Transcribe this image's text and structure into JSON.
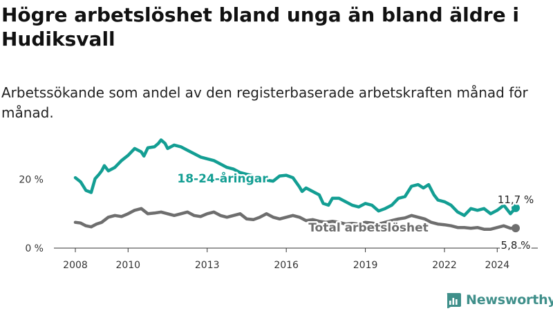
{
  "title": "Högre arbetslöshet bland unga än bland äldre i Hudiksvall",
  "subtitle": "Arbetssökande som andel av den registerbaserade arbetskraften månad för månad.",
  "brand": {
    "name": "Newsworthy",
    "icon": "newsworthy-logo-icon"
  },
  "colors": {
    "youth": "#139e93",
    "total": "#6e6e6e",
    "axis": "#333333",
    "grid": "#dddddd",
    "brand": "#3f8f8a"
  },
  "chart_data": {
    "type": "line",
    "title": "Högre arbetslöshet bland unga än bland äldre i Hudiksvall",
    "subtitle": "Arbetssökande som andel av den registerbaserade arbetskraften månad för månad.",
    "xlabel": "",
    "ylabel": "",
    "x_ticks": [
      "2008",
      "2010",
      "2013",
      "2016",
      "2019",
      "2022",
      "2024"
    ],
    "x_tick_values": [
      2008,
      2010,
      2013,
      2016,
      2019,
      2022,
      2024
    ],
    "y_ticks": [
      "0 %",
      "20 %"
    ],
    "y_tick_values": [
      0,
      20
    ],
    "ylim": [
      0,
      33
    ],
    "xlim": [
      2007.5,
      2025.3
    ],
    "grid": false,
    "legend": "inline labels",
    "series": [
      {
        "name": "18-24-åringar",
        "end_label": "11,7 %",
        "points": [
          [
            2008.0,
            20.5
          ],
          [
            2008.2,
            19.3
          ],
          [
            2008.4,
            16.8
          ],
          [
            2008.6,
            16.2
          ],
          [
            2008.75,
            20.2
          ],
          [
            2008.9,
            21.5
          ],
          [
            2009.0,
            22.5
          ],
          [
            2009.1,
            24.0
          ],
          [
            2009.25,
            22.5
          ],
          [
            2009.5,
            23.5
          ],
          [
            2009.75,
            25.5
          ],
          [
            2010.0,
            27.0
          ],
          [
            2010.25,
            29.0
          ],
          [
            2010.5,
            28.0
          ],
          [
            2010.6,
            26.8
          ],
          [
            2010.75,
            29.2
          ],
          [
            2011.0,
            29.5
          ],
          [
            2011.15,
            30.5
          ],
          [
            2011.25,
            31.5
          ],
          [
            2011.4,
            30.5
          ],
          [
            2011.5,
            29.0
          ],
          [
            2011.75,
            30.0
          ],
          [
            2012.0,
            29.5
          ],
          [
            2012.25,
            28.5
          ],
          [
            2012.5,
            27.5
          ],
          [
            2012.75,
            26.5
          ],
          [
            2013.0,
            26.0
          ],
          [
            2013.25,
            25.5
          ],
          [
            2013.5,
            24.5
          ],
          [
            2013.75,
            23.5
          ],
          [
            2014.0,
            23.0
          ],
          [
            2014.25,
            22.0
          ],
          [
            2014.5,
            21.5
          ],
          [
            2014.75,
            21.0
          ],
          [
            2015.0,
            20.5
          ],
          [
            2015.25,
            19.8
          ],
          [
            2015.5,
            19.5
          ],
          [
            2015.75,
            21.0
          ],
          [
            2016.0,
            21.2
          ],
          [
            2016.25,
            20.5
          ],
          [
            2016.5,
            17.8
          ],
          [
            2016.6,
            16.5
          ],
          [
            2016.75,
            17.5
          ],
          [
            2017.0,
            16.5
          ],
          [
            2017.25,
            15.5
          ],
          [
            2017.4,
            13.0
          ],
          [
            2017.6,
            12.5
          ],
          [
            2017.75,
            14.5
          ],
          [
            2018.0,
            14.5
          ],
          [
            2018.25,
            13.5
          ],
          [
            2018.5,
            12.5
          ],
          [
            2018.75,
            12.0
          ],
          [
            2019.0,
            13.0
          ],
          [
            2019.25,
            12.5
          ],
          [
            2019.5,
            10.8
          ],
          [
            2019.75,
            11.5
          ],
          [
            2020.0,
            12.5
          ],
          [
            2020.25,
            14.5
          ],
          [
            2020.5,
            15.0
          ],
          [
            2020.75,
            18.0
          ],
          [
            2021.0,
            18.5
          ],
          [
            2021.2,
            17.5
          ],
          [
            2021.4,
            18.5
          ],
          [
            2021.6,
            15.5
          ],
          [
            2021.75,
            14.0
          ],
          [
            2022.0,
            13.5
          ],
          [
            2022.25,
            12.5
          ],
          [
            2022.5,
            10.5
          ],
          [
            2022.75,
            9.5
          ],
          [
            2023.0,
            11.5
          ],
          [
            2023.25,
            11.0
          ],
          [
            2023.5,
            11.5
          ],
          [
            2023.75,
            10.0
          ],
          [
            2024.0,
            11.0
          ],
          [
            2024.25,
            12.5
          ],
          [
            2024.5,
            10.0
          ],
          [
            2024.7,
            11.7
          ]
        ]
      },
      {
        "name": "Total arbetslöshet",
        "end_label": "5,8 %",
        "points": [
          [
            2008.0,
            7.5
          ],
          [
            2008.2,
            7.3
          ],
          [
            2008.4,
            6.5
          ],
          [
            2008.6,
            6.2
          ],
          [
            2008.8,
            7.0
          ],
          [
            2009.0,
            7.5
          ],
          [
            2009.25,
            9.0
          ],
          [
            2009.5,
            9.5
          ],
          [
            2009.75,
            9.2
          ],
          [
            2010.0,
            10.0
          ],
          [
            2010.25,
            11.0
          ],
          [
            2010.5,
            11.5
          ],
          [
            2010.75,
            10.0
          ],
          [
            2011.0,
            10.2
          ],
          [
            2011.25,
            10.5
          ],
          [
            2011.5,
            10.0
          ],
          [
            2011.75,
            9.5
          ],
          [
            2012.0,
            10.0
          ],
          [
            2012.25,
            10.5
          ],
          [
            2012.5,
            9.5
          ],
          [
            2012.75,
            9.2
          ],
          [
            2013.0,
            10.0
          ],
          [
            2013.25,
            10.5
          ],
          [
            2013.5,
            9.5
          ],
          [
            2013.75,
            9.0
          ],
          [
            2014.0,
            9.5
          ],
          [
            2014.25,
            10.0
          ],
          [
            2014.5,
            8.5
          ],
          [
            2014.75,
            8.3
          ],
          [
            2015.0,
            9.0
          ],
          [
            2015.25,
            10.0
          ],
          [
            2015.5,
            9.0
          ],
          [
            2015.75,
            8.5
          ],
          [
            2016.0,
            9.0
          ],
          [
            2016.25,
            9.5
          ],
          [
            2016.5,
            9.0
          ],
          [
            2016.75,
            8.0
          ],
          [
            2017.0,
            8.3
          ],
          [
            2017.25,
            7.8
          ],
          [
            2017.5,
            7.5
          ],
          [
            2017.75,
            7.8
          ],
          [
            2018.0,
            7.5
          ],
          [
            2018.25,
            7.0
          ],
          [
            2018.5,
            7.2
          ],
          [
            2018.75,
            7.0
          ],
          [
            2019.0,
            7.5
          ],
          [
            2019.25,
            7.3
          ],
          [
            2019.5,
            7.0
          ],
          [
            2019.75,
            7.5
          ],
          [
            2020.0,
            8.0
          ],
          [
            2020.25,
            8.5
          ],
          [
            2020.5,
            8.8
          ],
          [
            2020.75,
            9.5
          ],
          [
            2021.0,
            9.0
          ],
          [
            2021.25,
            8.5
          ],
          [
            2021.5,
            7.5
          ],
          [
            2021.75,
            7.0
          ],
          [
            2022.0,
            6.8
          ],
          [
            2022.25,
            6.5
          ],
          [
            2022.5,
            6.0
          ],
          [
            2022.75,
            6.0
          ],
          [
            2023.0,
            5.8
          ],
          [
            2023.25,
            6.0
          ],
          [
            2023.5,
            5.5
          ],
          [
            2023.75,
            5.5
          ],
          [
            2024.0,
            6.0
          ],
          [
            2024.25,
            6.5
          ],
          [
            2024.5,
            5.8
          ],
          [
            2024.7,
            5.8
          ]
        ]
      }
    ]
  }
}
